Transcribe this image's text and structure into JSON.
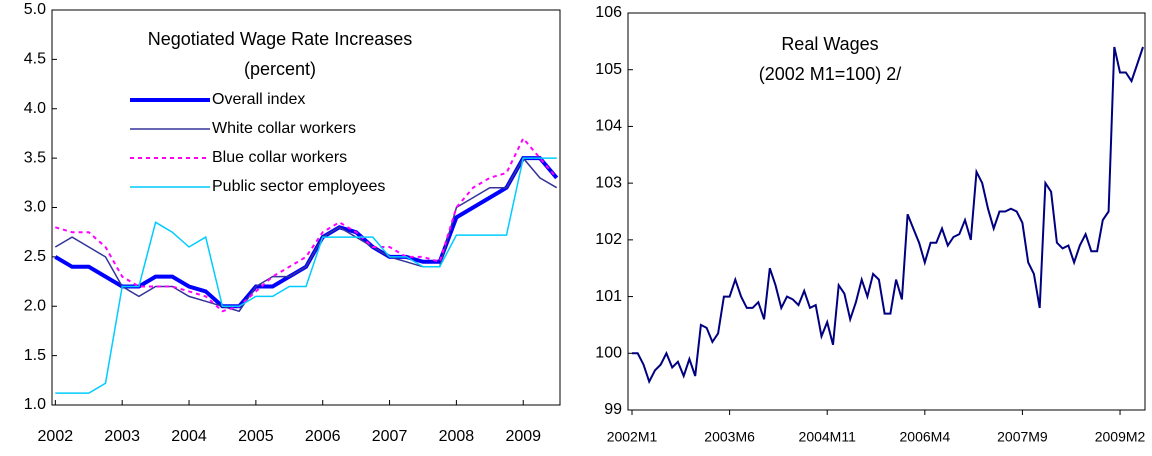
{
  "chart_data": [
    {
      "type": "line",
      "title": "Negotiated Wage Rate Increases",
      "subtitle": "(percent)",
      "x": [
        2002,
        2002.25,
        2002.5,
        2002.75,
        2003,
        2003.25,
        2003.5,
        2003.75,
        2004,
        2004.25,
        2004.5,
        2004.75,
        2005,
        2005.25,
        2005.5,
        2005.75,
        2006,
        2006.25,
        2006.5,
        2006.75,
        2007,
        2007.25,
        2007.5,
        2007.75,
        2008,
        2008.25,
        2008.5,
        2008.75,
        2009,
        2009.25,
        2009.5
      ],
      "series": [
        {
          "name": "Overall index",
          "color": "#0000ff",
          "width": 4,
          "dash": false,
          "values": [
            2.5,
            2.4,
            2.4,
            2.3,
            2.2,
            2.2,
            2.3,
            2.3,
            2.2,
            2.15,
            2.0,
            2.0,
            2.2,
            2.2,
            2.3,
            2.4,
            2.7,
            2.8,
            2.75,
            2.6,
            2.5,
            2.5,
            2.45,
            2.45,
            2.9,
            3.0,
            3.1,
            3.2,
            3.5,
            3.5,
            3.3
          ]
        },
        {
          "name": "White collar workers",
          "color": "#333399",
          "width": 1.5,
          "dash": false,
          "values": [
            2.6,
            2.7,
            2.6,
            2.5,
            2.2,
            2.1,
            2.2,
            2.2,
            2.1,
            2.05,
            2.0,
            1.95,
            2.2,
            2.3,
            2.3,
            2.4,
            2.7,
            2.8,
            2.7,
            2.6,
            2.5,
            2.45,
            2.4,
            2.4,
            3.0,
            3.1,
            3.2,
            3.2,
            3.5,
            3.3,
            3.2
          ]
        },
        {
          "name": "Blue collar workers",
          "color": "#ff00ff",
          "width": 2,
          "dash": true,
          "values": [
            2.8,
            2.75,
            2.75,
            2.6,
            2.3,
            2.2,
            2.2,
            2.2,
            2.15,
            2.1,
            1.95,
            2.0,
            2.15,
            2.3,
            2.4,
            2.5,
            2.75,
            2.85,
            2.75,
            2.6,
            2.6,
            2.5,
            2.5,
            2.45,
            3.0,
            3.2,
            3.3,
            3.35,
            3.7,
            3.5,
            3.3
          ]
        },
        {
          "name": "Public sector employees",
          "color": "#00ccff",
          "width": 1.5,
          "dash": false,
          "values": [
            1.12,
            1.12,
            1.12,
            1.22,
            2.2,
            2.2,
            2.85,
            2.75,
            2.6,
            2.7,
            2.0,
            2.0,
            2.1,
            2.1,
            2.2,
            2.2,
            2.7,
            2.7,
            2.7,
            2.7,
            2.5,
            2.5,
            2.4,
            2.4,
            2.72,
            2.72,
            2.72,
            2.72,
            3.5,
            3.5,
            3.5
          ]
        }
      ],
      "xlim": [
        2001.95,
        2009.55
      ],
      "xticks": [
        2002,
        2003,
        2004,
        2005,
        2006,
        2007,
        2008,
        2009
      ],
      "ylim": [
        1,
        5
      ],
      "yticks": [
        {
          "value": 1,
          "label": "1.0"
        },
        1.5,
        {
          "value": 2,
          "label": "2.0"
        },
        2.5,
        {
          "value": 3,
          "label": "3.0"
        },
        3.5,
        {
          "value": 4,
          "label": "4.0"
        },
        4.5,
        {
          "value": 5,
          "label": "5.0"
        }
      ]
    },
    {
      "type": "line",
      "title": "Real Wages",
      "subtitle": "(2002 M1=100) 2/",
      "categories": [
        "2002M1",
        null,
        null,
        null,
        null,
        null,
        null,
        null,
        null,
        null,
        null,
        null,
        null,
        null,
        null,
        null,
        null,
        "2003M6",
        null,
        null,
        null,
        null,
        null,
        null,
        null,
        null,
        null,
        null,
        null,
        null,
        null,
        null,
        null,
        null,
        "2004M11",
        null,
        null,
        null,
        null,
        null,
        null,
        null,
        null,
        null,
        null,
        null,
        null,
        null,
        null,
        null,
        null,
        "2006M4",
        null,
        null,
        null,
        null,
        null,
        null,
        null,
        null,
        null,
        null,
        null,
        null,
        null,
        null,
        null,
        null,
        "2007M9",
        null,
        null,
        null,
        null,
        null,
        null,
        null,
        null,
        null,
        null,
        null,
        null,
        null,
        null,
        null,
        null,
        "2009M2",
        null,
        null,
        null,
        null
      ],
      "series": [
        {
          "name": "Real wages",
          "color": "#000080",
          "width": 2,
          "dash": false,
          "values": [
            100.0,
            100.0,
            99.8,
            99.5,
            99.7,
            99.8,
            100.0,
            99.75,
            99.85,
            99.6,
            99.9,
            99.6,
            100.5,
            100.45,
            100.2,
            100.35,
            101.0,
            101.0,
            101.3,
            101.0,
            100.8,
            100.8,
            100.9,
            100.6,
            101.5,
            101.2,
            100.8,
            101.0,
            100.95,
            100.85,
            101.1,
            100.8,
            100.85,
            100.3,
            100.55,
            100.15,
            101.2,
            101.05,
            100.6,
            100.9,
            101.3,
            101.0,
            101.4,
            101.3,
            100.7,
            100.7,
            101.3,
            100.95,
            102.45,
            102.2,
            101.95,
            101.6,
            101.95,
            101.95,
            102.2,
            101.9,
            102.05,
            102.1,
            102.35,
            102.0,
            103.2,
            103.0,
            102.55,
            102.2,
            102.5,
            102.5,
            102.55,
            102.5,
            102.3,
            101.6,
            101.4,
            100.8,
            103.0,
            102.85,
            101.95,
            101.85,
            101.9,
            101.6,
            101.9,
            102.1,
            101.8,
            101.8,
            102.35,
            102.5,
            105.4,
            104.95,
            104.95,
            104.8,
            105.1,
            105.4
          ]
        }
      ],
      "ylim": [
        99,
        106
      ],
      "yticks": [
        99,
        100,
        101,
        102,
        103,
        104,
        105,
        106
      ]
    }
  ]
}
